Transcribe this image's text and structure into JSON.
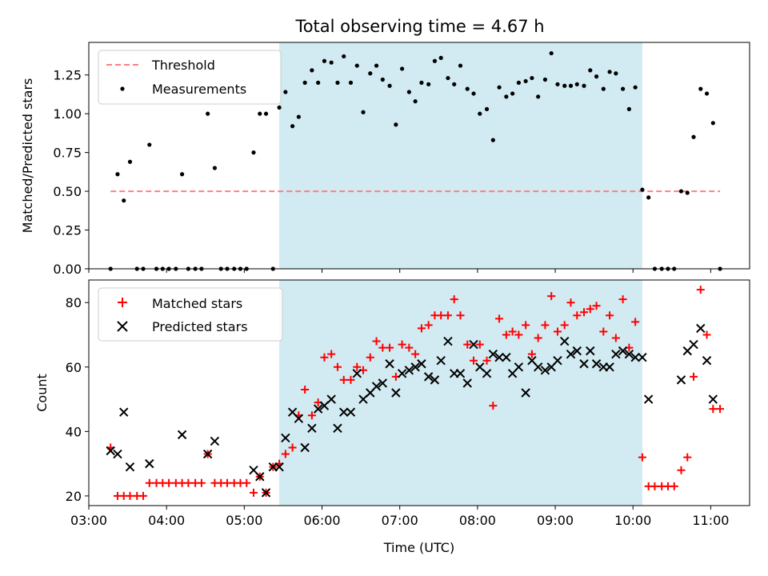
{
  "title": "Total observing time = 4.67 h",
  "xlabel": "Time (UTC)",
  "colors": {
    "threshold": "#ff7f7f",
    "measurement": "#000000",
    "matched": "#ff0000",
    "predicted": "#000000",
    "observing_span": "#add8e6"
  },
  "chart_data": [
    {
      "type": "scatter",
      "ylabel": "Matched/Predicted stars",
      "xlim": [
        3.0,
        11.5
      ],
      "ylim": [
        0.0,
        1.46
      ],
      "yticks": [
        0.0,
        0.25,
        0.5,
        0.75,
        1.0,
        1.25
      ],
      "ytick_labels": [
        "0.00",
        "0.25",
        "0.50",
        "0.75",
        "1.00",
        "1.25"
      ],
      "xticks": [
        3,
        4,
        5,
        6,
        7,
        8,
        9,
        10,
        11
      ],
      "xtick_labels": [
        "",
        "",
        "",
        "",
        "",
        "",
        "",
        "",
        ""
      ],
      "shaded_span": [
        5.45,
        10.12
      ],
      "legend": {
        "placement": "top-left",
        "entries": [
          "Threshold",
          "Measurements"
        ]
      },
      "threshold": {
        "name": "Threshold",
        "x": [
          3.28,
          11.12
        ],
        "y": 0.5
      },
      "series": [
        {
          "name": "Measurements",
          "x": [
            3.28,
            3.37,
            3.45,
            3.53,
            3.62,
            3.7,
            3.78,
            3.87,
            3.95,
            4.03,
            4.12,
            4.2,
            4.28,
            4.37,
            4.45,
            4.53,
            4.62,
            4.7,
            4.78,
            4.87,
            4.95,
            5.03,
            5.12,
            5.2,
            5.28,
            5.37,
            5.45,
            5.53,
            5.62,
            5.7,
            5.78,
            5.87,
            5.95,
            6.03,
            6.12,
            6.2,
            6.28,
            6.37,
            6.45,
            6.53,
            6.62,
            6.7,
            6.78,
            6.87,
            6.95,
            7.03,
            7.12,
            7.2,
            7.28,
            7.37,
            7.45,
            7.53,
            7.62,
            7.7,
            7.78,
            7.87,
            7.95,
            8.03,
            8.12,
            8.2,
            8.28,
            8.37,
            8.45,
            8.53,
            8.62,
            8.7,
            8.78,
            8.87,
            8.95,
            9.03,
            9.12,
            9.2,
            9.28,
            9.37,
            9.45,
            9.53,
            9.62,
            9.7,
            9.78,
            9.87,
            9.95,
            10.03,
            10.12,
            10.2,
            10.28,
            10.37,
            10.45,
            10.53,
            10.62,
            10.7,
            10.78,
            10.87,
            10.95,
            11.03,
            11.12
          ],
          "y": [
            0.0,
            0.61,
            0.44,
            0.69,
            0.0,
            0.0,
            0.8,
            0.0,
            0.0,
            0.0,
            0.0,
            0.61,
            0.0,
            0.0,
            0.0,
            1.0,
            0.65,
            0.0,
            0.0,
            0.0,
            0.0,
            0.0,
            0.75,
            1.0,
            1.0,
            0.0,
            1.04,
            1.14,
            0.92,
            0.98,
            1.2,
            1.28,
            1.2,
            1.34,
            1.33,
            1.2,
            1.37,
            1.2,
            1.31,
            1.01,
            1.26,
            1.31,
            1.22,
            1.18,
            0.93,
            1.29,
            1.14,
            1.08,
            1.2,
            1.19,
            1.34,
            1.36,
            1.23,
            1.19,
            1.31,
            1.16,
            1.13,
            1.0,
            1.03,
            0.83,
            1.17,
            1.11,
            1.13,
            1.2,
            1.21,
            1.23,
            1.11,
            1.22,
            1.39,
            1.19,
            1.18,
            1.18,
            1.19,
            1.18,
            1.28,
            1.24,
            1.16,
            1.27,
            1.26,
            1.16,
            1.03,
            1.17,
            0.51,
            0.46,
            0.0,
            0.0,
            0.0,
            0.0,
            0.5,
            0.49,
            0.85,
            1.16,
            1.13,
            0.94,
            0.0
          ]
        }
      ]
    },
    {
      "type": "scatter",
      "ylabel": "Count",
      "xlim": [
        3.0,
        11.5
      ],
      "ylim": [
        17.0,
        87.0
      ],
      "yticks": [
        20,
        40,
        60,
        80
      ],
      "ytick_labels": [
        "20",
        "40",
        "60",
        "80"
      ],
      "xticks": [
        3,
        4,
        5,
        6,
        7,
        8,
        9,
        10,
        11
      ],
      "xtick_labels": [
        "03:00",
        "04:00",
        "05:00",
        "06:00",
        "07:00",
        "08:00",
        "09:00",
        "10:00",
        "11:00"
      ],
      "shaded_span": [
        5.45,
        10.12
      ],
      "legend": {
        "placement": "top-left",
        "entries": [
          "Matched stars",
          "Predicted stars"
        ]
      },
      "series": [
        {
          "name": "Matched stars",
          "marker": "plus",
          "x": [
            3.28,
            3.37,
            3.45,
            3.53,
            3.62,
            3.7,
            3.78,
            3.87,
            3.95,
            4.03,
            4.12,
            4.2,
            4.28,
            4.37,
            4.45,
            4.53,
            4.62,
            4.7,
            4.78,
            4.87,
            4.95,
            5.03,
            5.12,
            5.2,
            5.28,
            5.37,
            5.45,
            5.53,
            5.62,
            5.7,
            5.78,
            5.87,
            5.95,
            6.03,
            6.12,
            6.2,
            6.28,
            6.37,
            6.45,
            6.53,
            6.62,
            6.7,
            6.78,
            6.87,
            6.95,
            7.03,
            7.12,
            7.2,
            7.28,
            7.37,
            7.45,
            7.53,
            7.62,
            7.7,
            7.78,
            7.87,
            7.95,
            8.03,
            8.12,
            8.2,
            8.28,
            8.37,
            8.45,
            8.53,
            8.62,
            8.7,
            8.78,
            8.87,
            8.95,
            9.03,
            9.12,
            9.2,
            9.28,
            9.37,
            9.45,
            9.53,
            9.62,
            9.7,
            9.78,
            9.87,
            9.95,
            10.03,
            10.12,
            10.2,
            10.28,
            10.37,
            10.45,
            10.53,
            10.62,
            10.7,
            10.78,
            10.87,
            10.95,
            11.03,
            11.12
          ],
          "y": [
            35,
            20,
            20,
            20,
            20,
            20,
            24,
            24,
            24,
            24,
            24,
            24,
            24,
            24,
            24,
            33,
            24,
            24,
            24,
            24,
            24,
            24,
            21,
            26,
            21,
            29,
            30,
            33,
            35,
            45,
            53,
            45,
            49,
            63,
            64,
            60,
            56,
            56,
            60,
            59,
            63,
            68,
            66,
            66,
            57,
            67,
            66,
            64,
            72,
            73,
            76,
            76,
            76,
            81,
            76,
            67,
            62,
            67,
            62,
            48,
            75,
            70,
            71,
            70,
            73,
            64,
            69,
            73,
            82,
            71,
            73,
            80,
            76,
            77,
            78,
            79,
            71,
            76,
            69,
            81,
            66,
            74,
            32,
            23,
            23,
            23,
            23,
            23,
            28,
            32,
            57,
            84,
            70,
            47,
            47
          ]
        },
        {
          "name": "Predicted stars",
          "marker": "x",
          "x": [
            3.28,
            3.37,
            3.45,
            3.53,
            3.78,
            4.2,
            4.53,
            4.62,
            5.12,
            5.2,
            5.28,
            5.37,
            5.45,
            5.53,
            5.62,
            5.7,
            5.78,
            5.87,
            5.95,
            6.03,
            6.12,
            6.2,
            6.28,
            6.37,
            6.45,
            6.53,
            6.62,
            6.7,
            6.78,
            6.87,
            6.95,
            7.03,
            7.12,
            7.2,
            7.28,
            7.37,
            7.45,
            7.53,
            7.62,
            7.7,
            7.78,
            7.87,
            7.95,
            8.03,
            8.12,
            8.2,
            8.28,
            8.37,
            8.45,
            8.53,
            8.62,
            8.7,
            8.78,
            8.87,
            8.95,
            9.03,
            9.12,
            9.2,
            9.28,
            9.37,
            9.45,
            9.53,
            9.62,
            9.7,
            9.78,
            9.87,
            9.95,
            10.03,
            10.12,
            10.2,
            10.62,
            10.7,
            10.78,
            10.87,
            10.95,
            11.03
          ],
          "y": [
            34,
            33,
            46,
            29,
            30,
            39,
            33,
            37,
            28,
            26,
            21,
            29,
            29,
            38,
            46,
            44,
            35,
            41,
            47,
            48,
            50,
            41,
            46,
            46,
            58,
            50,
            52,
            54,
            55,
            61,
            52,
            58,
            59,
            60,
            61,
            57,
            56,
            62,
            68,
            58,
            58,
            55,
            67,
            60,
            58,
            64,
            63,
            63,
            58,
            60,
            52,
            62,
            60,
            59,
            60,
            62,
            68,
            64,
            65,
            61,
            65,
            61,
            60,
            60,
            64,
            65,
            64,
            63,
            63,
            50,
            56,
            65,
            67,
            72,
            62,
            50
          ]
        }
      ]
    }
  ]
}
